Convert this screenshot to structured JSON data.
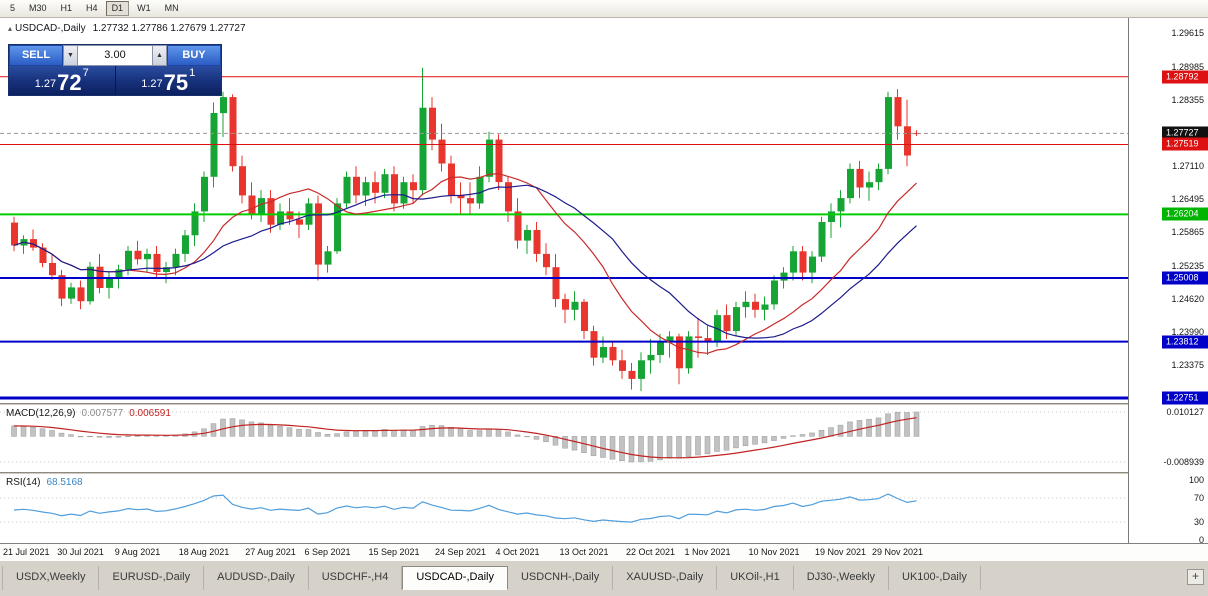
{
  "toolbar": {
    "periods": [
      {
        "label": "5",
        "active": false
      },
      {
        "label": "M30",
        "active": false
      },
      {
        "label": "H1",
        "active": false
      },
      {
        "label": "H4",
        "active": false
      },
      {
        "label": "D1",
        "active": true
      },
      {
        "label": "W1",
        "active": false
      },
      {
        "label": "MN",
        "active": false
      }
    ]
  },
  "main_chart": {
    "marker_icon": "▴",
    "title": "USDCAD-,Daily",
    "ohlc_text": "1.27732 1.27786 1.27679 1.27727"
  },
  "trade_panel": {
    "sell_label": "SELL",
    "buy_label": "BUY",
    "volume": "3.00",
    "spin_down_icon": "▼",
    "spin_up_icon": "▲",
    "sell_price": {
      "prefix": "1.27",
      "big": "72",
      "sup": "7"
    },
    "buy_price": {
      "prefix": "1.27",
      "big": "75",
      "sup": "1"
    }
  },
  "macd_panel": {
    "name": "MACD(12,26,9)",
    "value": "0.007577",
    "signal_value": "0.006591",
    "axis_labels": [
      "0.010127",
      "-0.008939"
    ],
    "hist_color": "#c2c2c2",
    "hist_border_color": "#9a9a9a",
    "signal_color": "#c22222"
  },
  "rsi_panel": {
    "name": "RSI(14)",
    "value": "68.5168",
    "line_color": "#4f9edd",
    "levels": [
      "100",
      "70",
      "30",
      "0"
    ]
  },
  "controls": {
    "new_chart_label": "+"
  },
  "tabs": [
    {
      "label": "USDX,Weekly",
      "active": false
    },
    {
      "label": "EURUSD-,Daily",
      "active": false
    },
    {
      "label": "AUDUSD-,Daily",
      "active": false
    },
    {
      "label": "USDCHF-,H4",
      "active": false
    },
    {
      "label": "USDCAD-,Daily",
      "active": true
    },
    {
      "label": "USDCNH-,Daily",
      "active": false
    },
    {
      "label": "XAUUSD-,Daily",
      "active": false
    },
    {
      "label": "UKOil-,H1",
      "active": false
    },
    {
      "label": "DJ30-,Weekly",
      "active": false
    },
    {
      "label": "UK100-,Daily",
      "active": false
    }
  ],
  "chart_data": {
    "type": "candlestick",
    "symbol": "USDCAD-",
    "timeframe": "Daily",
    "current_ohlc": {
      "open": 1.27732,
      "high": 1.27786,
      "low": 1.27679,
      "close": 1.27727
    },
    "up_color": "#16a534",
    "down_color": "#e8352e",
    "y_axis": {
      "anchor_top": 1.29615,
      "anchor_bottom": 1.22751,
      "ticks": [
        1.29615,
        1.28985,
        1.28355,
        1.2711,
        1.26495,
        1.25865,
        1.25235,
        1.2462,
        1.2399,
        1.23375
      ]
    },
    "price_tags": [
      {
        "price": 1.28792,
        "label": "1.28792",
        "color": "#dd1111"
      },
      {
        "price": 1.27727,
        "label": "1.27727",
        "color": "#111111"
      },
      {
        "price": 1.27519,
        "label": "1.27519",
        "color": "#dd1111"
      },
      {
        "price": 1.26204,
        "label": "1.26204",
        "color": "#00b400"
      },
      {
        "price": 1.25008,
        "label": "1.25008",
        "color": "#0000c8"
      },
      {
        "price": 1.23812,
        "label": "1.23812",
        "color": "#0000c8"
      },
      {
        "price": 1.22751,
        "label": "1.22751",
        "color": "#0000c8"
      }
    ],
    "hlines": [
      {
        "price": 1.28792,
        "color": "#dd1111",
        "width": 1,
        "name": "resistance-line-128792"
      },
      {
        "price": 1.27519,
        "color": "#dd1111",
        "width": 1,
        "name": "resistance-line-127519"
      },
      {
        "price": 1.27727,
        "color": "#999999",
        "width": 1,
        "dash": "4,3",
        "name": "bid-price-line"
      },
      {
        "price": 1.26204,
        "color": "#00cc00",
        "width": 2,
        "name": "support-line-126204"
      },
      {
        "price": 1.25008,
        "color": "#0000c8",
        "width": 2,
        "name": "support-line-125008"
      },
      {
        "price": 1.23812,
        "color": "#0000c8",
        "width": 2,
        "name": "support-line-123812"
      },
      {
        "price": 1.22751,
        "color": "#0000c8",
        "width": 3,
        "name": "support-line-122751"
      }
    ],
    "moving_averages": [
      {
        "name": "ma-fast-red",
        "period": 13,
        "color": "#c82a2a"
      },
      {
        "name": "ma-slow-blue",
        "period": 21,
        "color": "#1c1c8c"
      }
    ],
    "x_labels": [
      {
        "i": 0,
        "t": "21 Jul 2021"
      },
      {
        "i": 7,
        "t": "30 Jul 2021"
      },
      {
        "i": 13,
        "t": "9 Aug 2021"
      },
      {
        "i": 20,
        "t": "18 Aug 2021"
      },
      {
        "i": 27,
        "t": "27 Aug 2021"
      },
      {
        "i": 33,
        "t": "6 Sep 2021"
      },
      {
        "i": 40,
        "t": "15 Sep 2021"
      },
      {
        "i": 47,
        "t": "24 Sep 2021"
      },
      {
        "i": 53,
        "t": "4 Oct 2021"
      },
      {
        "i": 60,
        "t": "13 Oct 2021"
      },
      {
        "i": 67,
        "t": "22 Oct 2021"
      },
      {
        "i": 73,
        "t": "1 Nov 2021"
      },
      {
        "i": 80,
        "t": "10 Nov 2021"
      },
      {
        "i": 87,
        "t": "19 Nov 2021"
      },
      {
        "i": 93,
        "t": "29 Nov 2021"
      }
    ],
    "candles": [
      [
        1.2605,
        1.2616,
        1.2551,
        1.2562
      ],
      [
        1.2562,
        1.2581,
        1.2546,
        1.2574
      ],
      [
        1.2574,
        1.2592,
        1.2552,
        1.2558
      ],
      [
        1.2558,
        1.2566,
        1.2521,
        1.2529
      ],
      [
        1.2529,
        1.2546,
        1.2497,
        1.2506
      ],
      [
        1.2506,
        1.2516,
        1.2448,
        1.2462
      ],
      [
        1.2462,
        1.2492,
        1.2452,
        1.2483
      ],
      [
        1.2483,
        1.2496,
        1.2442,
        1.2457
      ],
      [
        1.2457,
        1.2531,
        1.2451,
        1.2522
      ],
      [
        1.2522,
        1.2546,
        1.2472,
        1.2482
      ],
      [
        1.2482,
        1.2512,
        1.2462,
        1.2502
      ],
      [
        1.2502,
        1.2526,
        1.2481,
        1.2517
      ],
      [
        1.2517,
        1.2561,
        1.2506,
        1.2552
      ],
      [
        1.2552,
        1.2571,
        1.2526,
        1.2536
      ],
      [
        1.2536,
        1.2556,
        1.2511,
        1.2546
      ],
      [
        1.2546,
        1.2561,
        1.2501,
        1.2512
      ],
      [
        1.2512,
        1.2531,
        1.2491,
        1.2521
      ],
      [
        1.2521,
        1.2556,
        1.2506,
        1.2546
      ],
      [
        1.2546,
        1.2591,
        1.2531,
        1.2581
      ],
      [
        1.2581,
        1.2641,
        1.2561,
        1.2626
      ],
      [
        1.2626,
        1.2701,
        1.2606,
        1.2691
      ],
      [
        1.2691,
        1.2831,
        1.2671,
        1.2811
      ],
      [
        1.2811,
        1.2851,
        1.2766,
        1.2841
      ],
      [
        1.2841,
        1.2846,
        1.2701,
        1.2711
      ],
      [
        1.2711,
        1.2731,
        1.2641,
        1.2656
      ],
      [
        1.2656,
        1.2681,
        1.2611,
        1.2621
      ],
      [
        1.2621,
        1.2666,
        1.2606,
        1.2651
      ],
      [
        1.2651,
        1.2666,
        1.2586,
        1.2601
      ],
      [
        1.2601,
        1.2641,
        1.2591,
        1.2626
      ],
      [
        1.2626,
        1.2651,
        1.2601,
        1.2611
      ],
      [
        1.2611,
        1.2626,
        1.2576,
        1.2601
      ],
      [
        1.2601,
        1.2651,
        1.2591,
        1.2641
      ],
      [
        1.2641,
        1.2656,
        1.2496,
        1.2526
      ],
      [
        1.2526,
        1.2561,
        1.2511,
        1.2551
      ],
      [
        1.2551,
        1.2651,
        1.2546,
        1.2641
      ],
      [
        1.2641,
        1.2701,
        1.2631,
        1.2691
      ],
      [
        1.2691,
        1.2711,
        1.2641,
        1.2656
      ],
      [
        1.2656,
        1.2691,
        1.2636,
        1.2681
      ],
      [
        1.2681,
        1.2701,
        1.2641,
        1.2661
      ],
      [
        1.2661,
        1.2706,
        1.2651,
        1.2696
      ],
      [
        1.2696,
        1.2711,
        1.2626,
        1.2641
      ],
      [
        1.2641,
        1.2691,
        1.2631,
        1.2681
      ],
      [
        1.2681,
        1.2696,
        1.2641,
        1.2666
      ],
      [
        1.2666,
        1.2896,
        1.2656,
        1.2821
      ],
      [
        1.2821,
        1.2841,
        1.2741,
        1.2761
      ],
      [
        1.2761,
        1.2791,
        1.2701,
        1.2716
      ],
      [
        1.2716,
        1.2731,
        1.2641,
        1.2656
      ],
      [
        1.2656,
        1.2681,
        1.2621,
        1.2651
      ],
      [
        1.2651,
        1.2681,
        1.2621,
        1.2641
      ],
      [
        1.2641,
        1.2711,
        1.2631,
        1.2691
      ],
      [
        1.2691,
        1.2776,
        1.2681,
        1.2761
      ],
      [
        1.2761,
        1.2771,
        1.2666,
        1.2681
      ],
      [
        1.2681,
        1.2691,
        1.2606,
        1.2626
      ],
      [
        1.2626,
        1.2651,
        1.2556,
        1.2571
      ],
      [
        1.2571,
        1.2601,
        1.2546,
        1.2591
      ],
      [
        1.2591,
        1.2606,
        1.2531,
        1.2546
      ],
      [
        1.2546,
        1.2566,
        1.2506,
        1.2521
      ],
      [
        1.2521,
        1.2546,
        1.2446,
        1.2461
      ],
      [
        1.2461,
        1.2471,
        1.2416,
        1.2441
      ],
      [
        1.2441,
        1.2476,
        1.2421,
        1.2456
      ],
      [
        1.2456,
        1.2461,
        1.2386,
        1.2401
      ],
      [
        1.2401,
        1.2411,
        1.2336,
        1.2351
      ],
      [
        1.2351,
        1.2391,
        1.2341,
        1.2371
      ],
      [
        1.2371,
        1.2381,
        1.2336,
        1.2346
      ],
      [
        1.2346,
        1.2366,
        1.2311,
        1.2326
      ],
      [
        1.2326,
        1.2341,
        1.2291,
        1.2311
      ],
      [
        1.2311,
        1.2361,
        1.2288,
        1.2346
      ],
      [
        1.2346,
        1.2386,
        1.2321,
        1.2356
      ],
      [
        1.2356,
        1.2396,
        1.2341,
        1.2381
      ],
      [
        1.2381,
        1.2401,
        1.2351,
        1.2391
      ],
      [
        1.2391,
        1.2396,
        1.2301,
        1.2331
      ],
      [
        1.2331,
        1.2401,
        1.2321,
        1.2391
      ],
      [
        1.2391,
        1.2426,
        1.2351,
        1.2388
      ],
      [
        1.2388,
        1.2411,
        1.2356,
        1.2381
      ],
      [
        1.2381,
        1.2441,
        1.2371,
        1.2431
      ],
      [
        1.2431,
        1.2451,
        1.2386,
        1.2401
      ],
      [
        1.2401,
        1.2456,
        1.2391,
        1.2446
      ],
      [
        1.2446,
        1.2476,
        1.2426,
        1.2456
      ],
      [
        1.2456,
        1.2471,
        1.2426,
        1.2441
      ],
      [
        1.2441,
        1.2466,
        1.2421,
        1.2451
      ],
      [
        1.2451,
        1.2506,
        1.2441,
        1.2496
      ],
      [
        1.2496,
        1.2521,
        1.2481,
        1.2511
      ],
      [
        1.2511,
        1.2561,
        1.2496,
        1.2551
      ],
      [
        1.2551,
        1.2561,
        1.2496,
        1.2511
      ],
      [
        1.2511,
        1.2551,
        1.2491,
        1.2541
      ],
      [
        1.2541,
        1.2616,
        1.2531,
        1.2606
      ],
      [
        1.2606,
        1.2641,
        1.2576,
        1.2626
      ],
      [
        1.2626,
        1.2666,
        1.2596,
        1.2651
      ],
      [
        1.2651,
        1.2716,
        1.2641,
        1.2706
      ],
      [
        1.2706,
        1.2721,
        1.2651,
        1.2671
      ],
      [
        1.2671,
        1.2701,
        1.2646,
        1.2681
      ],
      [
        1.2681,
        1.2716,
        1.2666,
        1.2706
      ],
      [
        1.2706,
        1.2851,
        1.2696,
        1.2841
      ],
      [
        1.2841,
        1.2856,
        1.2761,
        1.2786
      ],
      [
        1.2786,
        1.2836,
        1.2711,
        1.2731
      ],
      [
        1.27732,
        1.27786,
        1.27679,
        1.27727
      ]
    ]
  }
}
